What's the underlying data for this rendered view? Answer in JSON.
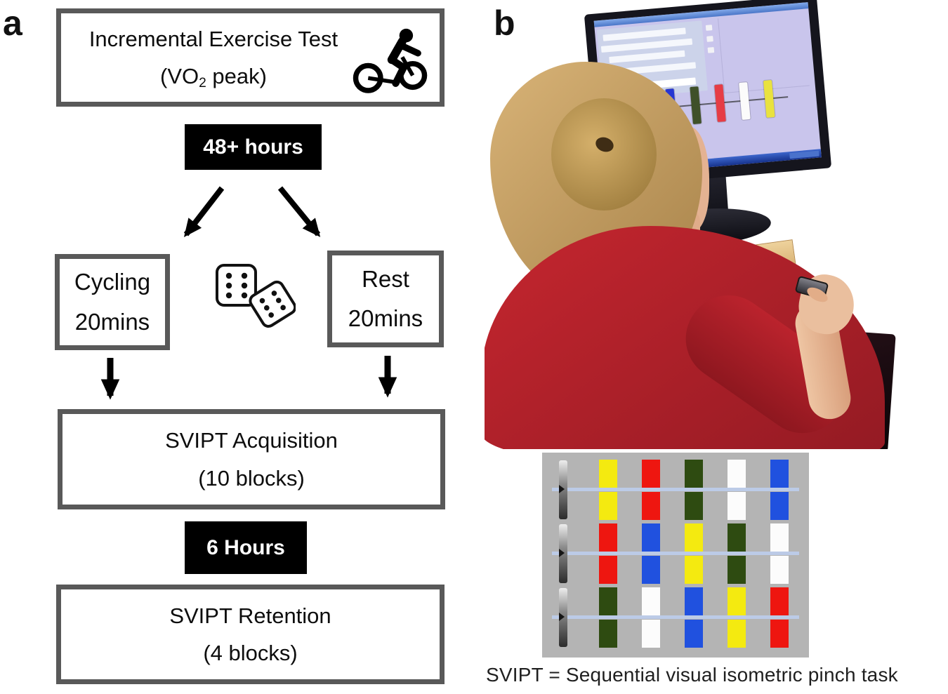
{
  "figure": {
    "panel_a_label": "a",
    "panel_b_label": "b",
    "caption": "SVIPT = Sequential visual isometric pinch task"
  },
  "flowchart": {
    "exercise_box": {
      "line1": "Incremental Exercise Test",
      "line2_pre": "(VO",
      "line2_sub": "2",
      "line2_post": " peak)"
    },
    "interval_1": "48+ hours",
    "cycling_box": {
      "line1": "Cycling",
      "line2": "20mins"
    },
    "rest_box": {
      "line1": "Rest",
      "line2": "20mins"
    },
    "acquisition_box": {
      "line1": "SVIPT Acquisition",
      "line2": "(10 blocks)"
    },
    "interval_2": "6 Hours",
    "retention_box": {
      "line1": "SVIPT Retention",
      "line2": "(4 blocks)"
    },
    "icons": [
      "cyclist-icon",
      "dice-icon"
    ]
  },
  "colors": {
    "box_border": "#595959",
    "interval_bg": "#000000",
    "interval_text": "#ffffff",
    "grid_bg": "#b4b4b4",
    "target_line": "#bccbe7",
    "target_palette": {
      "yellow": "#f4ea10",
      "red": "#ee1610",
      "green": "#2e4b11",
      "white": "#fcfcfc",
      "blue": "#2051df"
    },
    "screen_palette": {
      "olive": "#8c8c6e",
      "blue": "#2635d2",
      "green": "#3f5029",
      "red": "#e63c45",
      "white": "#fbfbfb",
      "yellow": "#e9e23e"
    }
  },
  "svipt_grid": {
    "rows": [
      {
        "cursor": "gray-cursor",
        "targets": [
          "yellow",
          "red",
          "green",
          "white",
          "blue"
        ]
      },
      {
        "cursor": "gray-cursor",
        "targets": [
          "red",
          "blue",
          "yellow",
          "green",
          "white"
        ]
      },
      {
        "cursor": "gray-cursor",
        "targets": [
          "green",
          "white",
          "blue",
          "yellow",
          "red"
        ]
      }
    ]
  },
  "monitor_screen": {
    "bars": [
      "olive",
      "blue",
      "green",
      "red",
      "white",
      "yellow"
    ]
  }
}
